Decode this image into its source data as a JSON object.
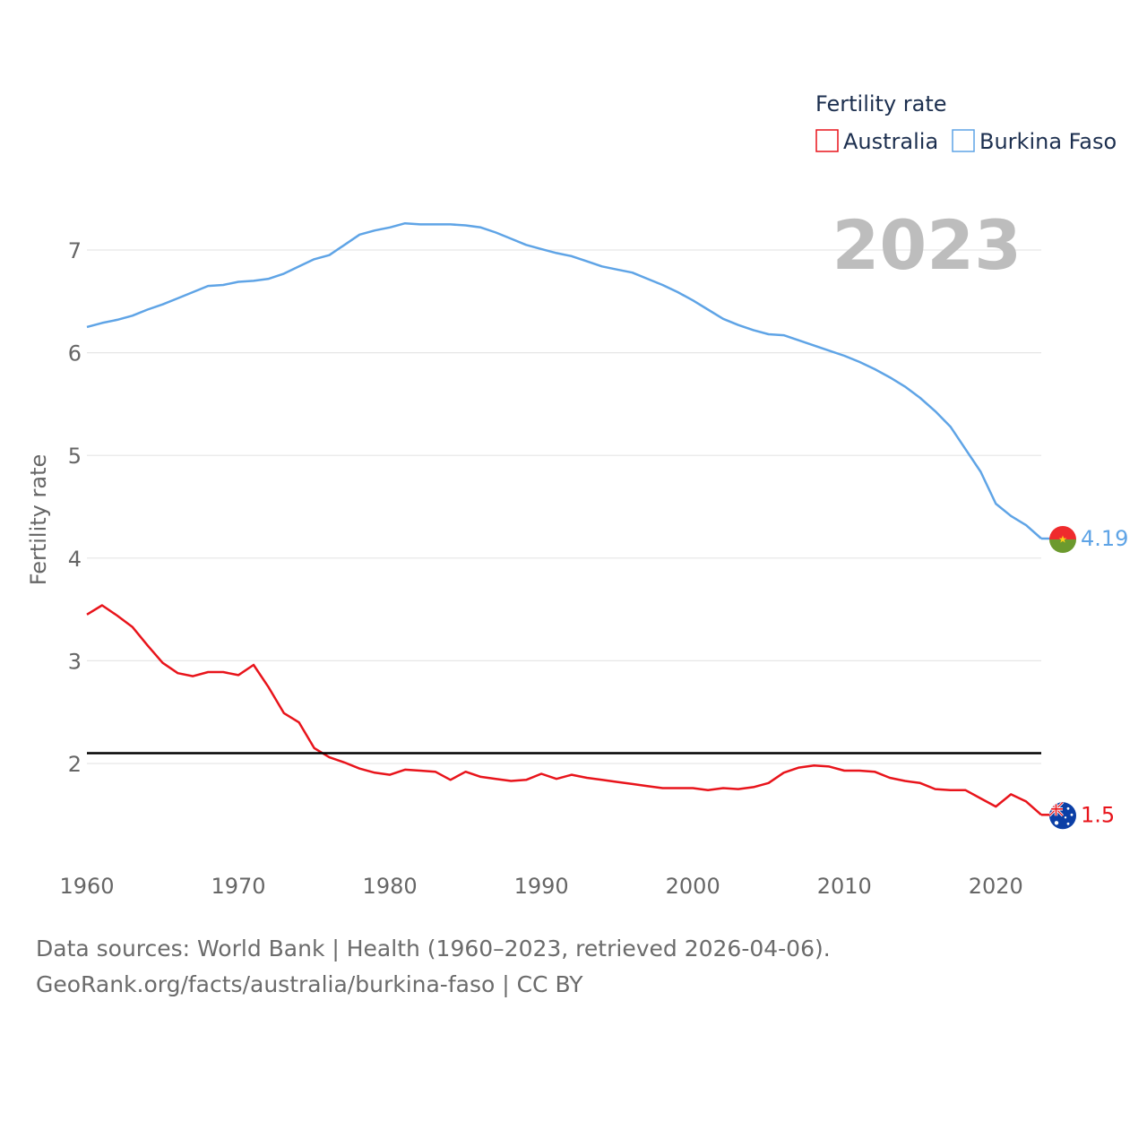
{
  "chart_data": {
    "type": "line",
    "legend_title": "Fertility rate",
    "ylabel": "Fertility rate",
    "year_label": "2023",
    "xlim": [
      1960,
      2023
    ],
    "ylim": [
      1,
      7.6
    ],
    "yticks": [
      2,
      3,
      4,
      5,
      6,
      7
    ],
    "xticks": [
      1960,
      1970,
      1980,
      1990,
      2000,
      2010,
      2020
    ],
    "reference_line": 2.1,
    "x": [
      1960,
      1961,
      1962,
      1963,
      1964,
      1965,
      1966,
      1967,
      1968,
      1969,
      1970,
      1971,
      1972,
      1973,
      1974,
      1975,
      1976,
      1977,
      1978,
      1979,
      1980,
      1981,
      1982,
      1983,
      1984,
      1985,
      1986,
      1987,
      1988,
      1989,
      1990,
      1991,
      1992,
      1993,
      1994,
      1995,
      1996,
      1997,
      1998,
      1999,
      2000,
      2001,
      2002,
      2003,
      2004,
      2005,
      2006,
      2007,
      2008,
      2009,
      2010,
      2011,
      2012,
      2013,
      2014,
      2015,
      2016,
      2017,
      2018,
      2019,
      2020,
      2021,
      2022,
      2023
    ],
    "series": [
      {
        "name": "Australia",
        "color": "#e8141b",
        "end_label": "1.5",
        "flag": "australia-flag",
        "values": [
          3.45,
          3.54,
          3.44,
          3.33,
          3.15,
          2.98,
          2.88,
          2.85,
          2.89,
          2.89,
          2.86,
          2.96,
          2.74,
          2.49,
          2.4,
          2.15,
          2.06,
          2.01,
          1.95,
          1.91,
          1.89,
          1.94,
          1.93,
          1.92,
          1.84,
          1.92,
          1.87,
          1.85,
          1.83,
          1.84,
          1.9,
          1.85,
          1.89,
          1.86,
          1.84,
          1.82,
          1.8,
          1.78,
          1.76,
          1.76,
          1.76,
          1.74,
          1.76,
          1.75,
          1.77,
          1.81,
          1.91,
          1.96,
          1.98,
          1.97,
          1.93,
          1.93,
          1.92,
          1.86,
          1.83,
          1.81,
          1.75,
          1.74,
          1.74,
          1.66,
          1.58,
          1.7,
          1.63,
          1.5
        ]
      },
      {
        "name": "Burkina Faso",
        "color": "#5fa4e6",
        "end_label": "4.19",
        "flag": "burkina-faso-flag",
        "values": [
          6.25,
          6.29,
          6.32,
          6.36,
          6.42,
          6.47,
          6.53,
          6.59,
          6.65,
          6.66,
          6.69,
          6.7,
          6.72,
          6.77,
          6.84,
          6.91,
          6.95,
          7.05,
          7.15,
          7.19,
          7.22,
          7.26,
          7.25,
          7.25,
          7.25,
          7.24,
          7.22,
          7.17,
          7.11,
          7.05,
          7.01,
          6.97,
          6.94,
          6.89,
          6.84,
          6.81,
          6.78,
          6.72,
          6.66,
          6.59,
          6.51,
          6.42,
          6.33,
          6.27,
          6.22,
          6.18,
          6.17,
          6.12,
          6.07,
          6.02,
          5.97,
          5.91,
          5.84,
          5.76,
          5.67,
          5.56,
          5.43,
          5.28,
          5.06,
          4.84,
          4.53,
          4.41,
          4.32,
          4.19
        ]
      }
    ]
  },
  "footer": {
    "sources": "Data sources: World Bank | Health (1960–2023, retrieved 2026-04-06).",
    "attribution": "GeoRank.org/facts/australia/burkina-faso | CC BY"
  }
}
